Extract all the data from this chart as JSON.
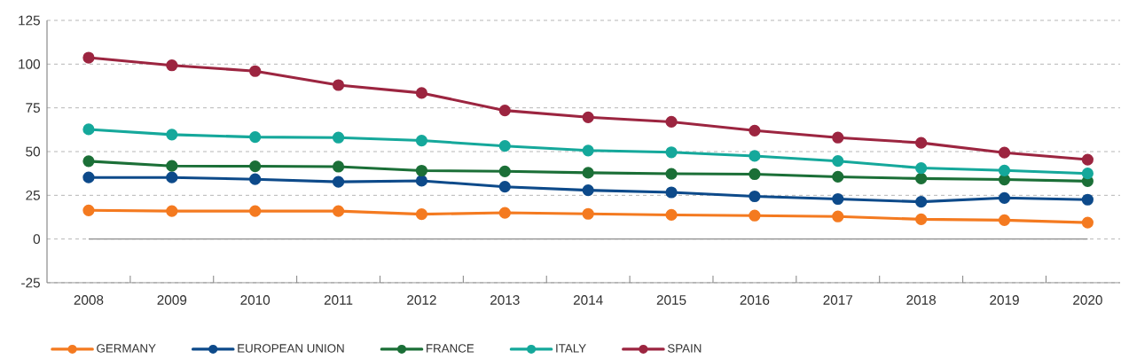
{
  "chart_data": {
    "type": "line",
    "categories": [
      "2008",
      "2009",
      "2010",
      "2011",
      "2012",
      "2013",
      "2014",
      "2015",
      "2016",
      "2017",
      "2018",
      "2019",
      "2020"
    ],
    "ylim": [
      -25,
      125
    ],
    "yticks": [
      -25,
      0,
      25,
      50,
      75,
      100,
      125
    ],
    "grid": "y",
    "legend": "bottom",
    "marker": "circle",
    "line_style": "solid",
    "ref_lines": [
      {
        "axis": "y",
        "value": 0,
        "color": "#8c8c8c"
      }
    ],
    "series": [
      {
        "name": "GERMANY",
        "color": "#f47a20",
        "values": [
          16.4,
          16,
          16,
          16,
          14.2,
          15,
          14.4,
          13.8,
          13.4,
          12.9,
          11.3,
          10.8,
          9.4
        ]
      },
      {
        "name": "EUROPEAN UNION",
        "color": "#0d4a8a",
        "values": [
          35.2,
          35.2,
          34.2,
          32.7,
          33.3,
          29.9,
          27.9,
          26.7,
          24.4,
          22.9,
          21.3,
          23.5,
          22.5
        ]
      },
      {
        "name": "FRANCE",
        "color": "#1b6f37",
        "values": [
          44.5,
          41.8,
          41.6,
          41.4,
          39.1,
          38.7,
          37.9,
          37.3,
          37.1,
          35.6,
          34.6,
          34,
          33.1
        ]
      },
      {
        "name": "ITALY",
        "color": "#15a89b",
        "values": [
          62.7,
          59.7,
          58.3,
          58,
          56.3,
          53.2,
          50.6,
          49.6,
          47.5,
          44.6,
          40.6,
          39.2,
          37.5
        ]
      },
      {
        "name": "SPAIN",
        "color": "#9c2540",
        "values": [
          103.7,
          99.3,
          96,
          88,
          83.5,
          73.5,
          69.6,
          67,
          62,
          58,
          55,
          49.4,
          45.4
        ]
      }
    ]
  }
}
